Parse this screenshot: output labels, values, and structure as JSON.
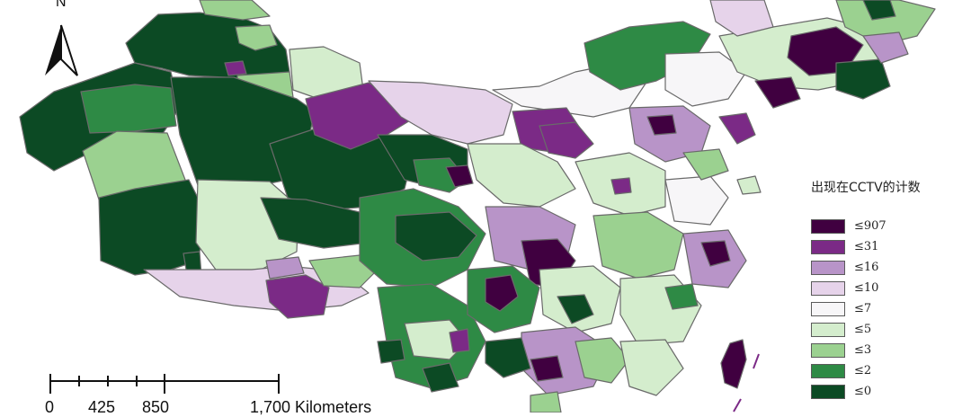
{
  "map": {
    "north_label": "N",
    "scale_bar": {
      "labels": [
        "0",
        "425",
        "850",
        "1,700 Kilometers"
      ]
    }
  },
  "legend": {
    "title": "出现在CCTV的计数",
    "classes": [
      {
        "label": "≤907",
        "color": "#400040"
      },
      {
        "label": "≤31",
        "color": "#7b2a86"
      },
      {
        "label": "≤16",
        "color": "#b894c8"
      },
      {
        "label": "≤10",
        "color": "#e6d3ea"
      },
      {
        "label": "≤7",
        "color": "#f7f6f8"
      },
      {
        "label": "≤5",
        "color": "#d4edcd"
      },
      {
        "label": "≤3",
        "color": "#9bd190"
      },
      {
        "label": "≤2",
        "color": "#2e8a45"
      },
      {
        "label": "≤0",
        "color": "#0c4a24"
      }
    ]
  }
}
